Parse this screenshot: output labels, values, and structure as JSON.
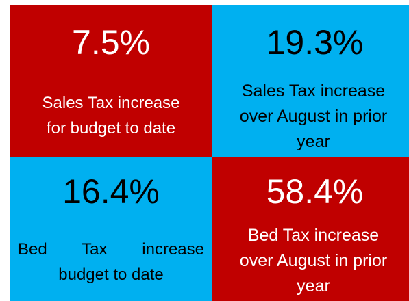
{
  "tiles": [
    {
      "value": "7.5%",
      "caption": [
        "Sales Tax increase",
        "for budget to date"
      ]
    },
    {
      "value": "19.3%",
      "caption": [
        "Sales Tax increase",
        "over August in prior",
        "year"
      ]
    },
    {
      "value": "16.4%",
      "caption": [
        "Bed Tax increase",
        "budget to date"
      ]
    },
    {
      "value": "58.4%",
      "caption": [
        "Bed Tax increase",
        "over August in prior",
        "year"
      ]
    }
  ]
}
